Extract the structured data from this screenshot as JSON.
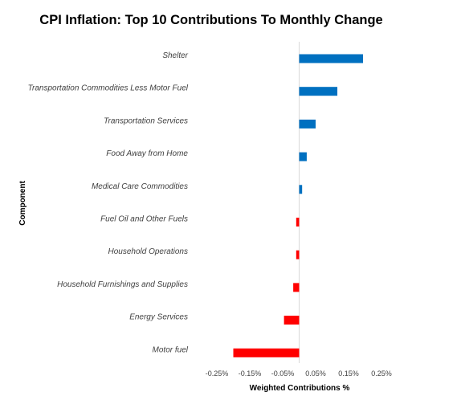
{
  "chart_data": {
    "type": "bar",
    "orientation": "horizontal",
    "title": "CPI Inflation: Top 10 Contributions To Monthly Change",
    "xlabel": "Weighted Contributions %",
    "ylabel": "Component",
    "xlim": [
      -0.25,
      0.25
    ],
    "x_ticks": [
      "-0.25%",
      "-0.15%",
      "-0.05%",
      "0.05%",
      "0.15%",
      "0.25%"
    ],
    "grid": false,
    "legend": "none",
    "categories": [
      "Shelter",
      "Transportation Commodities Less Motor Fuel",
      "Transportation Services",
      "Food Away from Home",
      "Medical Care Commodities",
      "Fuel Oil and Other Fuels",
      "Household Operations",
      "Household Furnishings and Supplies",
      "Energy Services",
      "Motor fuel"
    ],
    "values": [
      0.194,
      0.116,
      0.05,
      0.023,
      0.009,
      -0.009,
      -0.009,
      -0.018,
      -0.046,
      -0.2
    ],
    "colors": {
      "positive": "#0070c0",
      "negative": "#ff0000",
      "baseline": "#d9d9d9"
    }
  }
}
